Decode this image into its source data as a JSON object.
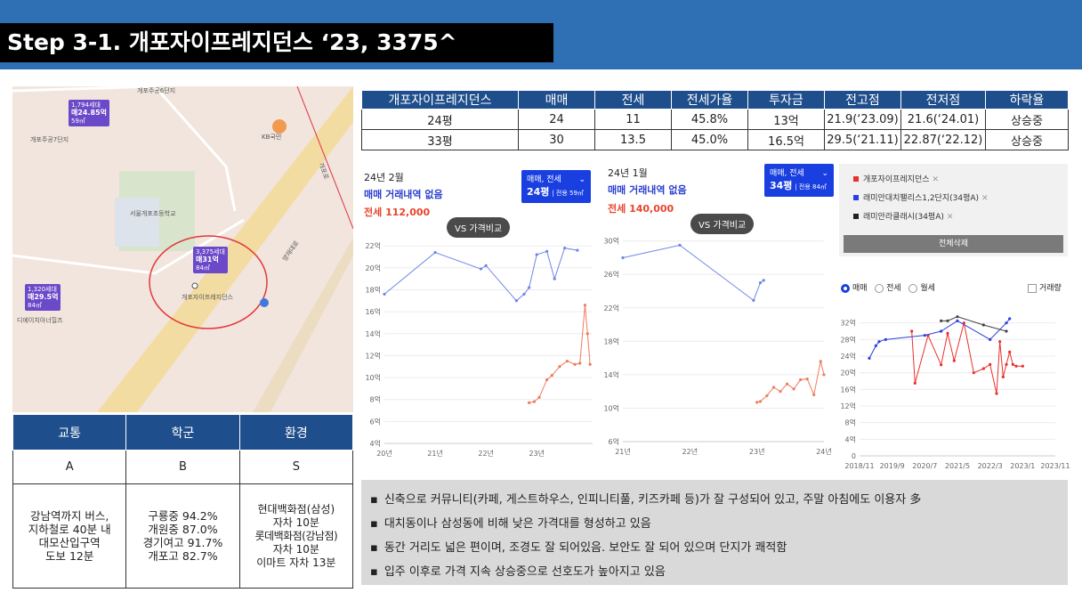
{
  "page": {
    "title": "Step 3-1. 개포자이프레지던스 ‘23, 3375^"
  },
  "map": {
    "labels": [
      "개포주공6단지",
      "개포주공7단지",
      "KB국민",
      "서울개포초등학교",
      "개포자이프레지던스",
      "디에이치아너힐즈",
      "양재대로",
      "개포로"
    ],
    "tags": [
      {
        "top": "1,794세대",
        "price": "매24.85억",
        "sub": "59㎡"
      },
      {
        "top": "3,375세대",
        "price": "매31억",
        "sub": "84㎡"
      },
      {
        "top": "1,320세대",
        "price": "매29.5억",
        "sub": "84㎡"
      }
    ]
  },
  "info_table": {
    "headers": [
      "교통",
      "학군",
      "환경"
    ],
    "grades": [
      "A",
      "B",
      "S"
    ],
    "transport": [
      "강남역까지 버스,",
      "지하철로 40분 내",
      "대모산입구역",
      "도보 12분"
    ],
    "school": [
      "구룡중 94.2%",
      "개원중 87.0%",
      "경기여고 91.7%",
      "개포고 82.7%"
    ],
    "environment": [
      "현대백화점(삼성)",
      "자차 10분",
      "롯데백화점(강남점)",
      "자차 10분",
      "이마트 자차 13분"
    ]
  },
  "price_table": {
    "headers": [
      "개포자이프레지던스",
      "매매",
      "전세",
      "전세가율",
      "투자금",
      "전고점",
      "전저점",
      "하락율"
    ],
    "rows": [
      [
        "24평",
        "24",
        "11",
        "45.8%",
        "13억",
        "21.9(‘23.09)",
        "21.6(‘24.01)",
        "상승중"
      ],
      [
        "33평",
        "30",
        "13.5",
        "45.0%",
        "16.5억",
        "29.5(‘21.11)",
        "22.87(‘22.12)",
        "상승중"
      ]
    ]
  },
  "chart1": {
    "date": "24년 2월",
    "trade_note": "매매 거래내역 없음",
    "jeonse": "전세 112,000",
    "selector": {
      "line1": "매매, 전세",
      "size": "24평",
      "detail": "| 전용 59㎡"
    },
    "vs_button": "VS 가격비교"
  },
  "chart2": {
    "date": "24년 1월",
    "trade_note": "매매 거래내역 없음",
    "jeonse": "전세 140,000",
    "selector": {
      "line1": "매매, 전세",
      "size": "34평",
      "detail": "| 전용 84㎡"
    },
    "vs_button": "VS 가격비교"
  },
  "chart3_panel": {
    "legend": [
      {
        "label": "개포자이프레지던스",
        "color": "#e8312c"
      },
      {
        "label": "래미안대치팰리스1,2단지(34평A)",
        "color": "#2a3fe0"
      },
      {
        "label": "래미안라클래시(34평A)",
        "color": "#222222"
      }
    ],
    "delete_all": "전체삭제",
    "radios": [
      "매매",
      "전세",
      "월세"
    ],
    "checkbox": "거래량"
  },
  "chart_data": [
    {
      "type": "line",
      "title": "",
      "xlabel": "",
      "ylabel": "",
      "x_ticks": [
        "20년",
        "21년",
        "22년",
        "23년"
      ],
      "y_ticks": [
        "4억",
        "6억",
        "8억",
        "10억",
        "12억",
        "14억",
        "16억",
        "18억",
        "20억",
        "22억"
      ],
      "xlim": [
        2020.0,
        2024.1
      ],
      "ylim": [
        4,
        22.5
      ],
      "series": [
        {
          "color": "#6f86e6",
          "x": [
            2020.0,
            2021.0,
            2021.9,
            2022.0,
            2022.6,
            2022.75,
            2022.85,
            2023.0,
            2023.2,
            2023.35,
            2023.55,
            2023.8
          ],
          "values": [
            17.6,
            21.4,
            19.9,
            20.2,
            17.0,
            17.6,
            18.2,
            21.2,
            21.5,
            19.0,
            21.8,
            21.6
          ]
        },
        {
          "color": "#f07b5e",
          "x": [
            2022.85,
            2022.95,
            2023.05,
            2023.2,
            2023.3,
            2023.45,
            2023.6,
            2023.75,
            2023.85,
            2023.95,
            2024.0,
            2024.05
          ],
          "values": [
            7.7,
            7.8,
            8.2,
            9.8,
            10.2,
            11.0,
            11.5,
            11.2,
            11.3,
            16.6,
            14.0,
            11.2
          ]
        }
      ]
    },
    {
      "type": "line",
      "title": "",
      "xlabel": "",
      "ylabel": "",
      "x_ticks": [
        "21년",
        "22년",
        "23년",
        "24년"
      ],
      "y_ticks": [
        "6억",
        "10억",
        "14억",
        "18억",
        "22억",
        "26억",
        "30억"
      ],
      "xlim": [
        2021.0,
        2024.0
      ],
      "ylim": [
        6,
        30.5
      ],
      "series": [
        {
          "color": "#6f86e6",
          "x": [
            2021.0,
            2021.85,
            2022.95,
            2023.05,
            2023.1
          ],
          "values": [
            28.0,
            29.5,
            22.9,
            25.0,
            25.3
          ]
        },
        {
          "color": "#f07b5e",
          "x": [
            2023.0,
            2023.05,
            2023.15,
            2023.25,
            2023.35,
            2023.45,
            2023.55,
            2023.65,
            2023.75,
            2023.85,
            2023.95,
            2024.0
          ],
          "values": [
            10.7,
            10.8,
            11.5,
            12.5,
            12.0,
            12.9,
            12.3,
            13.4,
            13.5,
            11.6,
            15.6,
            14.0
          ]
        }
      ]
    },
    {
      "type": "line",
      "title": "",
      "xlabel": "",
      "ylabel": "",
      "x_ticks": [
        "2018/11",
        "2019/9",
        "2020/7",
        "2021/5",
        "2022/3",
        "2023/1",
        "2023/11"
      ],
      "y_ticks": [
        "0",
        "4억",
        "8억",
        "12억",
        "16억",
        "20억",
        "24억",
        "28억",
        "32억"
      ],
      "xlim": [
        0,
        60
      ],
      "ylim": [
        0,
        33
      ],
      "series": [
        {
          "name": "개포자이프레지던스",
          "color": "#e8312c",
          "x": [
            16,
            17,
            21,
            25,
            27,
            29,
            32,
            35,
            38,
            40,
            42,
            43,
            44,
            45,
            46,
            47,
            48,
            50
          ],
          "values": [
            30.0,
            17.5,
            29.0,
            21.9,
            29.5,
            22.9,
            32.0,
            20.0,
            21.0,
            22.0,
            15.0,
            27.5,
            19.0,
            22.0,
            25.0,
            22.0,
            21.6,
            21.6
          ]
        },
        {
          "name": "래미안대치팰리스1,2단지(34평A)",
          "color": "#2a3fe0",
          "x": [
            3,
            5,
            6,
            8,
            20,
            25,
            30,
            40,
            45,
            46
          ],
          "values": [
            23.5,
            26.5,
            27.5,
            28.0,
            29.0,
            30.0,
            32.5,
            28.0,
            32.0,
            33.0
          ]
        },
        {
          "name": "래미안라클래시(34평A)",
          "color": "#444444",
          "x": [
            25,
            27,
            30,
            38,
            45
          ],
          "values": [
            32.5,
            32.5,
            33.5,
            31.5,
            30.0
          ]
        }
      ]
    }
  ],
  "notes": [
    "신축으로 커뮤니티(카페, 게스트하우스, 인피니티풀, 키즈카페 등)가 잘 구성되어 있고, 주말 아침에도 이용자 多",
    "대치동이나 삼성동에 비해 낮은 가격대를 형성하고 있음",
    "동간 거리도 넓은 편이며, 조경도 잘 되어있음.  보안도 잘 되어 있으며 단지가 쾌적함",
    "입주 이후로 가격 지속 상승중으로 선호도가 높아지고 있음"
  ]
}
